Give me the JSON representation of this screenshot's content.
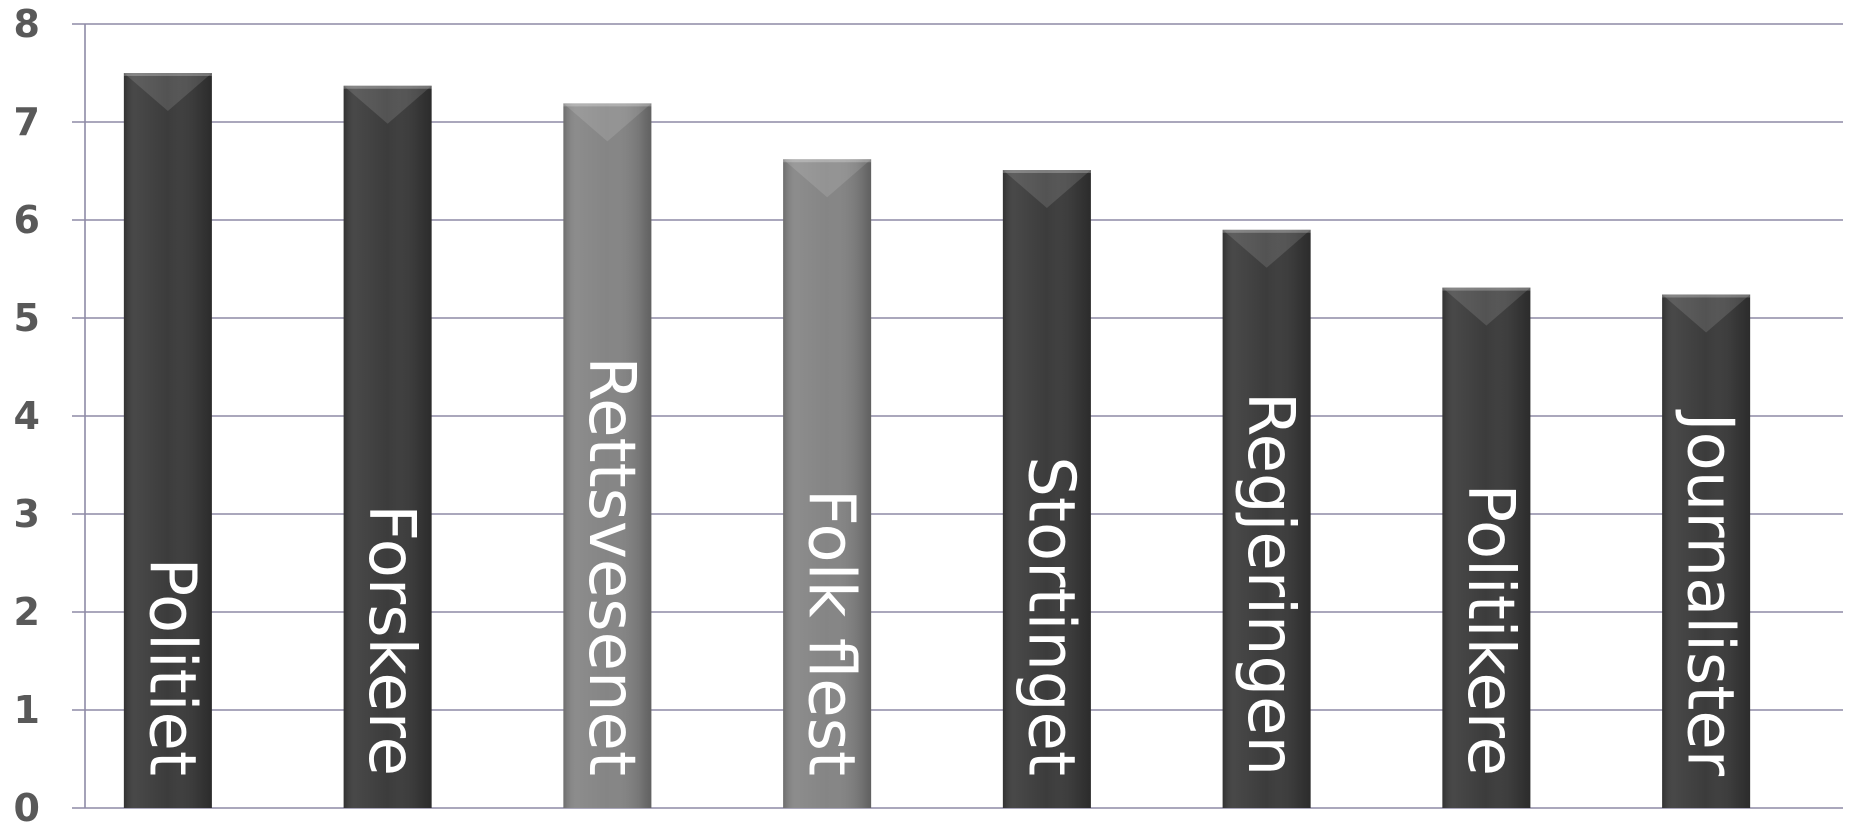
{
  "chart_data": {
    "type": "bar",
    "title": "",
    "xlabel": "",
    "ylabel": "",
    "categories": [
      "Politiet",
      "Forskere",
      "Rettsvesenet",
      "Folk flest",
      "Stortinget",
      "Regjeringen",
      "Politikere",
      "Journalister"
    ],
    "values": [
      7.5,
      7.37,
      7.19,
      6.62,
      6.51,
      5.9,
      5.31,
      5.24
    ],
    "bar_colors": [
      "#3c3c3c",
      "#3c3c3c",
      "#858585",
      "#858585",
      "#3c3c3c",
      "#3c3c3c",
      "#3c3c3c",
      "#3c3c3c"
    ],
    "ylim": [
      0,
      8
    ],
    "yticks": [
      "0",
      "1",
      "2",
      "3",
      "4",
      "5",
      "6",
      "7",
      "8"
    ],
    "grid": true,
    "legend": "none"
  }
}
